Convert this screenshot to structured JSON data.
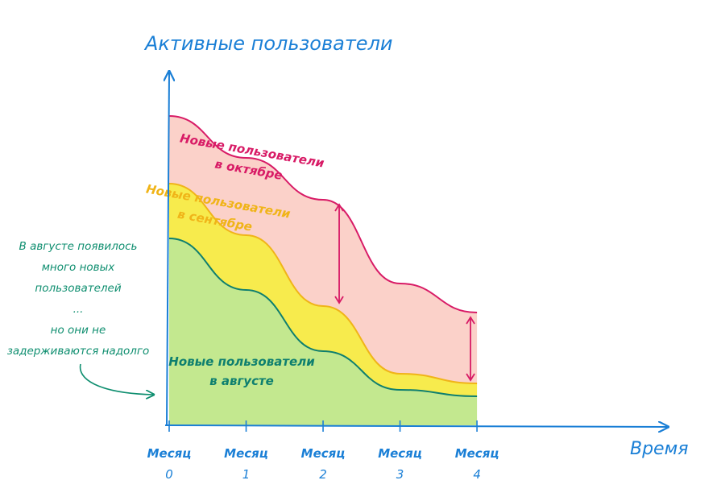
{
  "chart_data": {
    "type": "area",
    "title": "",
    "ylabel": "Активные пользователи",
    "xlabel": "Время",
    "x_ticks": [
      {
        "line1": "Месяц",
        "line2": "0"
      },
      {
        "line1": "Месяц",
        "line2": "1"
      },
      {
        "line1": "Месяц",
        "line2": "2"
      },
      {
        "line1": "Месяц",
        "line2": "3"
      },
      {
        "line1": "Месяц",
        "line2": "4"
      }
    ],
    "x": [
      0,
      1,
      2,
      3,
      4
    ],
    "xlim": [
      0,
      6.7
    ],
    "ylim": [
      0,
      100
    ],
    "stacked": true,
    "grid": false,
    "series": [
      {
        "name": "Новые пользователи в августе",
        "name_line1": "Новые пользователи",
        "name_line2": "в августе",
        "values": [
          58,
          42,
          23,
          11,
          9
        ],
        "fill": "#c3e88f",
        "line": "#0e7f6f"
      },
      {
        "name": "Новые пользователи в сентябре",
        "name_line1": "Новые пользователи",
        "name_line2": "в сентябре",
        "values": [
          17,
          17,
          14,
          5,
          4
        ],
        "fill": "#f7eb4d",
        "line": "#f0b418"
      },
      {
        "name": "Новые пользователи в октябре",
        "name_line1": "Новые пользователи",
        "name_line2": "в октябре",
        "values": [
          21,
          24,
          33,
          28,
          22
        ],
        "fill": "#fbd1c9",
        "line": "#d81b66"
      }
    ]
  },
  "annotation": {
    "lines": [
      "В августе появилось",
      "много новых",
      "пользователей",
      "...",
      "но они не",
      "задерживаются надолго"
    ],
    "color": "#0e8e6f"
  },
  "colors": {
    "axis": "#1a7fd6",
    "label": "#1a7fd6",
    "tick_text": "#1a7fd6"
  }
}
